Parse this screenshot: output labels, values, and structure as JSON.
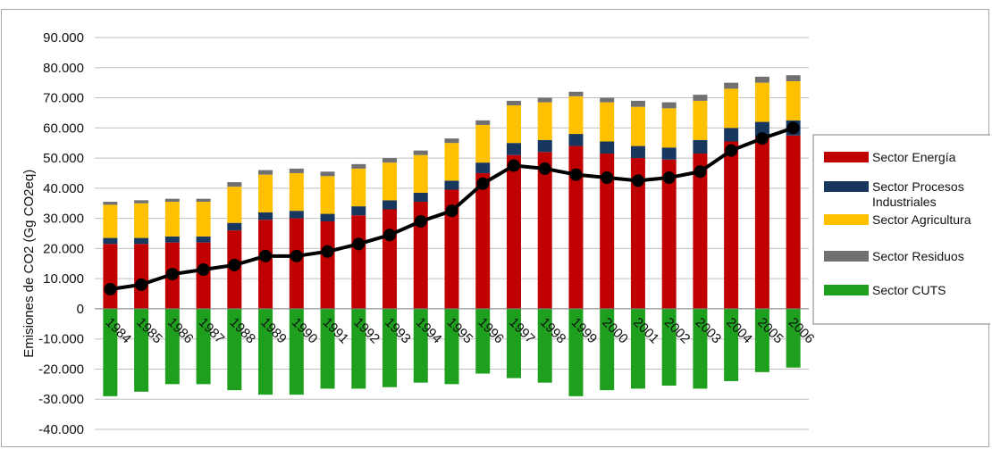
{
  "chart_data": {
    "type": "bar",
    "stacked": true,
    "ylabel": "Emisiones de CO2 (Gg CO2eq)",
    "ylim": [
      -40000,
      90000
    ],
    "y_ticks": [
      "90.000",
      "80.000",
      "70.000",
      "60.000",
      "50.000",
      "40.000",
      "30.000",
      "20.000",
      "10.000",
      "0",
      "-10.000",
      "-20.000",
      "-30.000",
      "-40.000"
    ],
    "y_tick_values": [
      90000,
      80000,
      70000,
      60000,
      50000,
      40000,
      30000,
      20000,
      10000,
      0,
      -10000,
      -20000,
      -30000,
      -40000
    ],
    "grid": true,
    "legend_position": "right",
    "categories": [
      "1984",
      "1985",
      "1986",
      "1987",
      "1988",
      "1989",
      "1990",
      "1991",
      "1992",
      "1993",
      "1994",
      "1995",
      "1996",
      "1997",
      "1998",
      "1999",
      "2000",
      "2001",
      "2002",
      "2003",
      "2004",
      "2005",
      "2006"
    ],
    "series": [
      {
        "name": "Sector Energía",
        "color": "#c00000",
        "values": [
          21500,
          21500,
          22000,
          22000,
          26000,
          29500,
          30000,
          29000,
          31000,
          33000,
          35500,
          39500,
          45000,
          51000,
          52000,
          54000,
          51500,
          50000,
          49500,
          51500,
          55500,
          57000,
          57500
        ]
      },
      {
        "name": "Sector Procesos Industriales",
        "color": "#17375e",
        "values": [
          2000,
          2000,
          2000,
          2000,
          2500,
          2500,
          2500,
          2500,
          3000,
          3000,
          3000,
          3000,
          3500,
          4000,
          4000,
          4000,
          4000,
          4000,
          4000,
          4500,
          4500,
          5000,
          5000
        ]
      },
      {
        "name": "Sector Agricultura",
        "color": "#ffc000",
        "values": [
          11000,
          11500,
          11500,
          11500,
          12000,
          12500,
          12500,
          12500,
          12500,
          12500,
          12500,
          12500,
          12500,
          12500,
          12500,
          12500,
          13000,
          13000,
          13000,
          13000,
          13000,
          13000,
          13000
        ]
      },
      {
        "name": "Sector Residuos",
        "color": "#707070",
        "values": [
          1000,
          1000,
          1000,
          1000,
          1500,
          1500,
          1500,
          1500,
          1500,
          1500,
          1500,
          1500,
          1500,
          1500,
          1500,
          1500,
          1500,
          2000,
          2000,
          2000,
          2000,
          2000,
          2000
        ]
      },
      {
        "name": "Sector CUTS",
        "color": "#1ea01e",
        "values": [
          -29000,
          -27500,
          -25000,
          -25000,
          -27000,
          -28500,
          -28500,
          -26500,
          -26500,
          -26000,
          -24500,
          -25000,
          -21500,
          -23000,
          -24500,
          -29000,
          -27000,
          -26500,
          -25500,
          -26500,
          -24000,
          -21000,
          -19500
        ]
      }
    ],
    "net_line": {
      "color": "#000000",
      "values": [
        6500,
        8000,
        11500,
        13000,
        14500,
        17500,
        17500,
        19000,
        21500,
        24500,
        29000,
        32500,
        41500,
        47500,
        46500,
        44500,
        43500,
        42500,
        43500,
        45500,
        52500,
        56500,
        60000
      ]
    }
  }
}
